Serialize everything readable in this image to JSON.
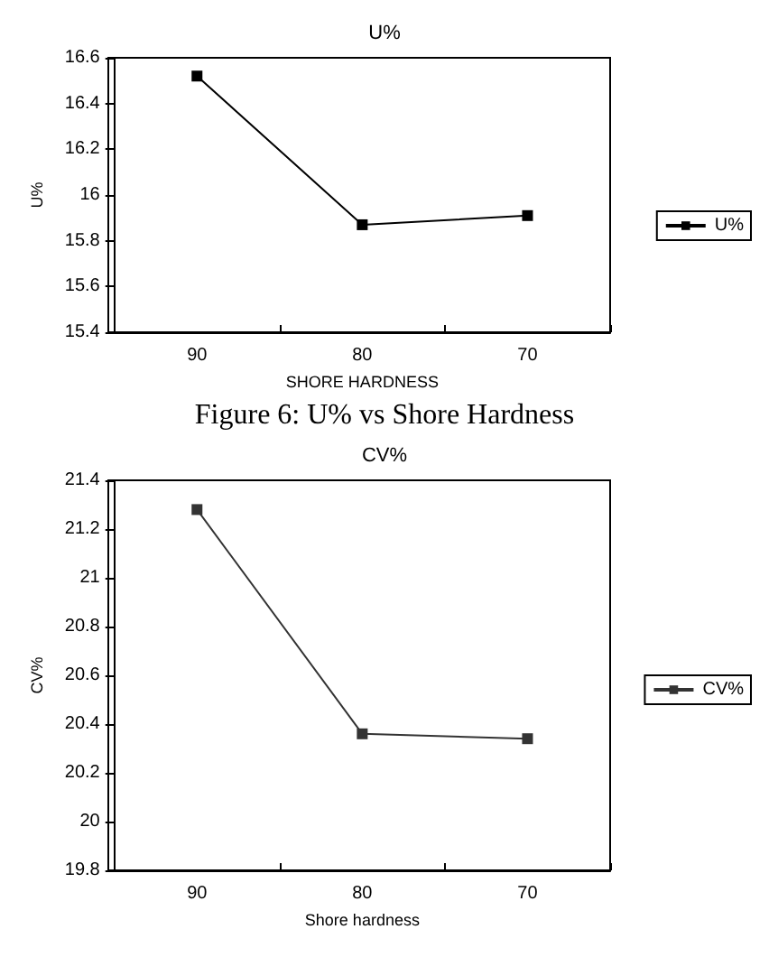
{
  "chart_data": [
    {
      "type": "line",
      "title": "U%",
      "xlabel": "SHORE HARDNESS",
      "ylabel": "U%",
      "categories": [
        "90",
        "80",
        "70"
      ],
      "series": [
        {
          "name": "U%",
          "color": "#000000",
          "values": [
            16.52,
            15.87,
            15.91
          ]
        }
      ],
      "ylim": [
        15.4,
        16.6
      ],
      "yticks": [
        15.4,
        15.6,
        15.8,
        16,
        16.2,
        16.4,
        16.6
      ],
      "grid": false,
      "legend": "right",
      "marker": "square",
      "line_style": "solid",
      "annotations": [
        "Figure 6: U% vs Shore Hardness"
      ]
    },
    {
      "type": "line",
      "title": "CV%",
      "xlabel": "Shore hardness",
      "ylabel": "CV%",
      "categories": [
        "90",
        "80",
        "70"
      ],
      "series": [
        {
          "name": "CV%",
          "color": "#333333",
          "values": [
            21.28,
            20.36,
            20.34
          ]
        }
      ],
      "ylim": [
        19.8,
        21.4
      ],
      "yticks": [
        19.8,
        20,
        20.2,
        20.4,
        20.6,
        20.8,
        21,
        21.2,
        21.4
      ],
      "grid": false,
      "legend": "right",
      "marker": "square",
      "line_style": "solid"
    }
  ]
}
